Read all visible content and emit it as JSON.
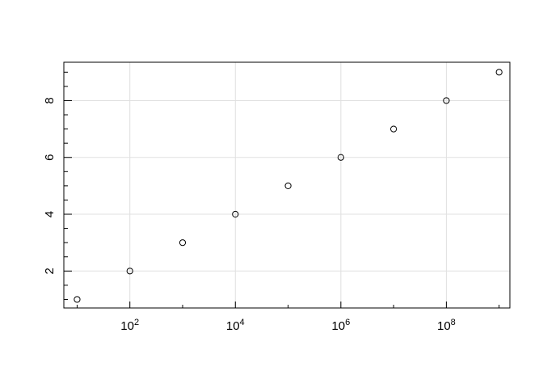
{
  "chart_data": {
    "type": "scatter",
    "title": "",
    "xlabel": "",
    "ylabel": "",
    "x_scale": "log10",
    "x": [
      10,
      100,
      1000,
      10000,
      100000,
      1000000,
      10000000,
      100000000,
      1000000000
    ],
    "y": [
      1,
      2,
      3,
      4,
      5,
      6,
      7,
      8,
      9
    ],
    "xlim": [
      5.6,
      1600000000.0
    ],
    "ylim": [
      0.7,
      9.35
    ],
    "x_tick_labels": [
      {
        "base": "10",
        "exp": "2",
        "value": 100
      },
      {
        "base": "10",
        "exp": "4",
        "value": 10000
      },
      {
        "base": "10",
        "exp": "6",
        "value": 1000000
      },
      {
        "base": "10",
        "exp": "8",
        "value": 100000000
      }
    ],
    "y_tick_labels": [
      "2",
      "4",
      "6",
      "8"
    ],
    "y_tick_values": [
      2,
      4,
      6,
      8
    ],
    "grid": true,
    "marker": "open-circle",
    "colors": {
      "marker": "#000000",
      "grid": "#e0e0e0",
      "axis": "#000000"
    }
  }
}
